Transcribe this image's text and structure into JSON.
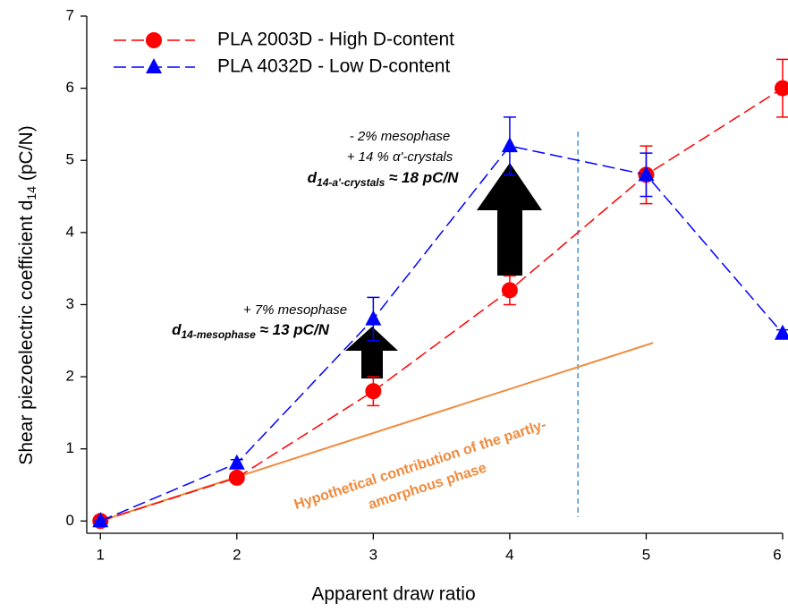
{
  "chart_data": {
    "type": "line",
    "x": [
      1,
      2,
      3,
      4,
      5,
      6
    ],
    "series": [
      {
        "name": "PLA 2003D - High D-content",
        "color": "#ff0000",
        "marker": "circle",
        "values": [
          0,
          0.6,
          1.8,
          3.2,
          4.8,
          6.0
        ],
        "errors": [
          0,
          0.05,
          0.2,
          0.2,
          0.4,
          0.4
        ]
      },
      {
        "name": "PLA 4032D - Low D-content",
        "color": "#0000ff",
        "marker": "triangle",
        "values": [
          0,
          0.8,
          2.8,
          5.2,
          4.8,
          2.6
        ],
        "errors": [
          0,
          0.05,
          0.3,
          0.4,
          0.3,
          0.05
        ]
      }
    ],
    "xlim": [
      0.9,
      6.0
    ],
    "ylim": [
      -0.17,
      7
    ],
    "xticks": [
      1,
      2,
      3,
      4,
      5,
      6
    ],
    "yticks": [
      0,
      1,
      2,
      3,
      4,
      5,
      6,
      7
    ],
    "x_label": "Apparent draw ratio",
    "y_label": {
      "main": "Shear piezoelectric coefficient d",
      "sub": "14",
      "unit": " (pC/N)"
    },
    "legend": "top-left",
    "vline": {
      "x": 4.5,
      "color": "#4a8fd0"
    },
    "reference_line": {
      "x": [
        1,
        5.05
      ],
      "y": [
        0,
        2.47
      ],
      "color": "#f08a3c",
      "label": [
        "Hypothetical contribution of the partly-",
        "amorphous phase"
      ]
    },
    "annotations": [
      {
        "lines": [
          "+ 7% mesophase"
        ],
        "prefix": "d",
        "sub": "14-mesophase",
        "suffix": " ≈ 13 pC/N"
      },
      {
        "lines": [
          "- 2% mesophase",
          "+ 14 % α'-crystals"
        ],
        "prefix": "d",
        "sub": "14-a'-crystals",
        "suffix": " ≈ 18 pC/N"
      }
    ]
  }
}
